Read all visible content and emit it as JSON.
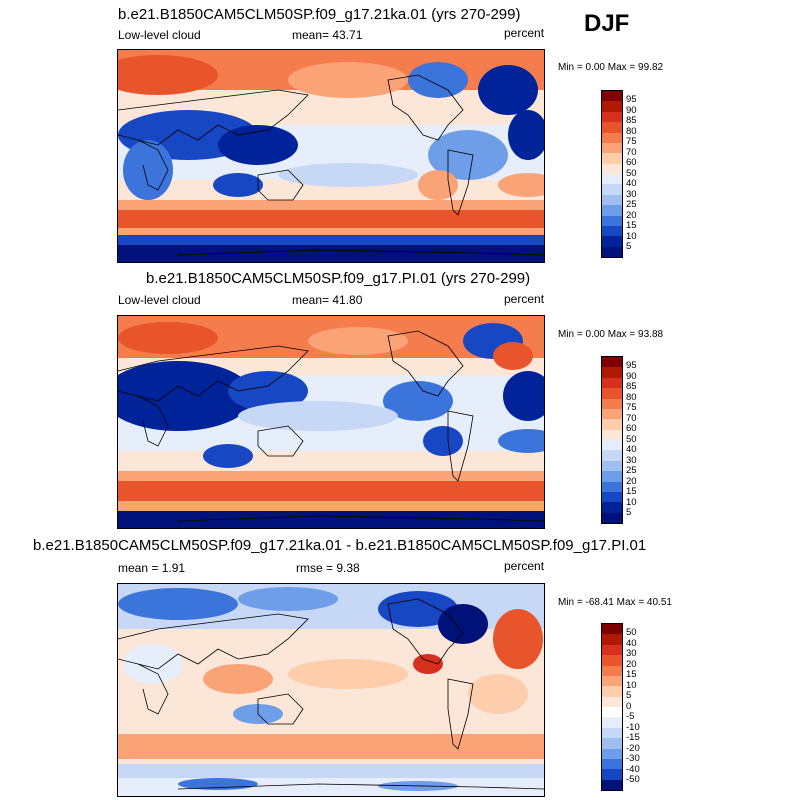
{
  "season": "DJF",
  "panels": [
    {
      "title": "b.e21.B1850CAM5CLM50SP.f09_g17.21ka.01 (yrs 270-299)",
      "left_label": "Low-level cloud",
      "center_label": "mean=  43.71",
      "right_label": "percent",
      "minmax": "Min =   0.00 Max =  99.82",
      "levels": [
        "95",
        "90",
        "85",
        "80",
        "75",
        "70",
        "60",
        "50",
        "40",
        "30",
        "25",
        "20",
        "15",
        "10",
        "5"
      ],
      "palette": "abs"
    },
    {
      "title": "b.e21.B1850CAM5CLM50SP.f09_g17.PI.01 (yrs 270-299)",
      "left_label": "Low-level cloud",
      "center_label": "mean=  41.80",
      "right_label": "percent",
      "minmax": "Min =   0.00 Max =  93.88",
      "levels": [
        "95",
        "90",
        "85",
        "80",
        "75",
        "70",
        "60",
        "50",
        "40",
        "30",
        "25",
        "20",
        "15",
        "10",
        "5"
      ],
      "palette": "abs"
    },
    {
      "title": "b.e21.B1850CAM5CLM50SP.f09_g17.21ka.01 - b.e21.B1850CAM5CLM50SP.f09_g17.PI.01",
      "left_label": "mean =   1.91",
      "center_label": "rmse =   9.38",
      "right_label": "percent",
      "minmax": "Min = -68.41 Max =  40.51",
      "levels": [
        "50",
        "40",
        "30",
        "20",
        "15",
        "10",
        "5",
        "0",
        "-5",
        "-10",
        "-15",
        "-20",
        "-30",
        "-40",
        "-50"
      ],
      "palette": "diff"
    }
  ],
  "colors": {
    "abs": [
      "#7f0000",
      "#b01a05",
      "#d7301f",
      "#e8552c",
      "#f47c4d",
      "#f9a377",
      "#fdcdac",
      "#fbe6d8",
      "#e7eefb",
      "#c6d8f5",
      "#9fbff0",
      "#6e9ee8",
      "#3b74db",
      "#1847c4",
      "#00239a",
      "#00127a"
    ],
    "diff": [
      "#7f0000",
      "#b01a05",
      "#d7301f",
      "#e8552c",
      "#f47c4d",
      "#f9a377",
      "#fdcdac",
      "#fbe6d8",
      "#ffffff",
      "#e7eefb",
      "#c6d8f5",
      "#9fbff0",
      "#6e9ee8",
      "#3b74db",
      "#1847c4",
      "#00127a"
    ]
  }
}
